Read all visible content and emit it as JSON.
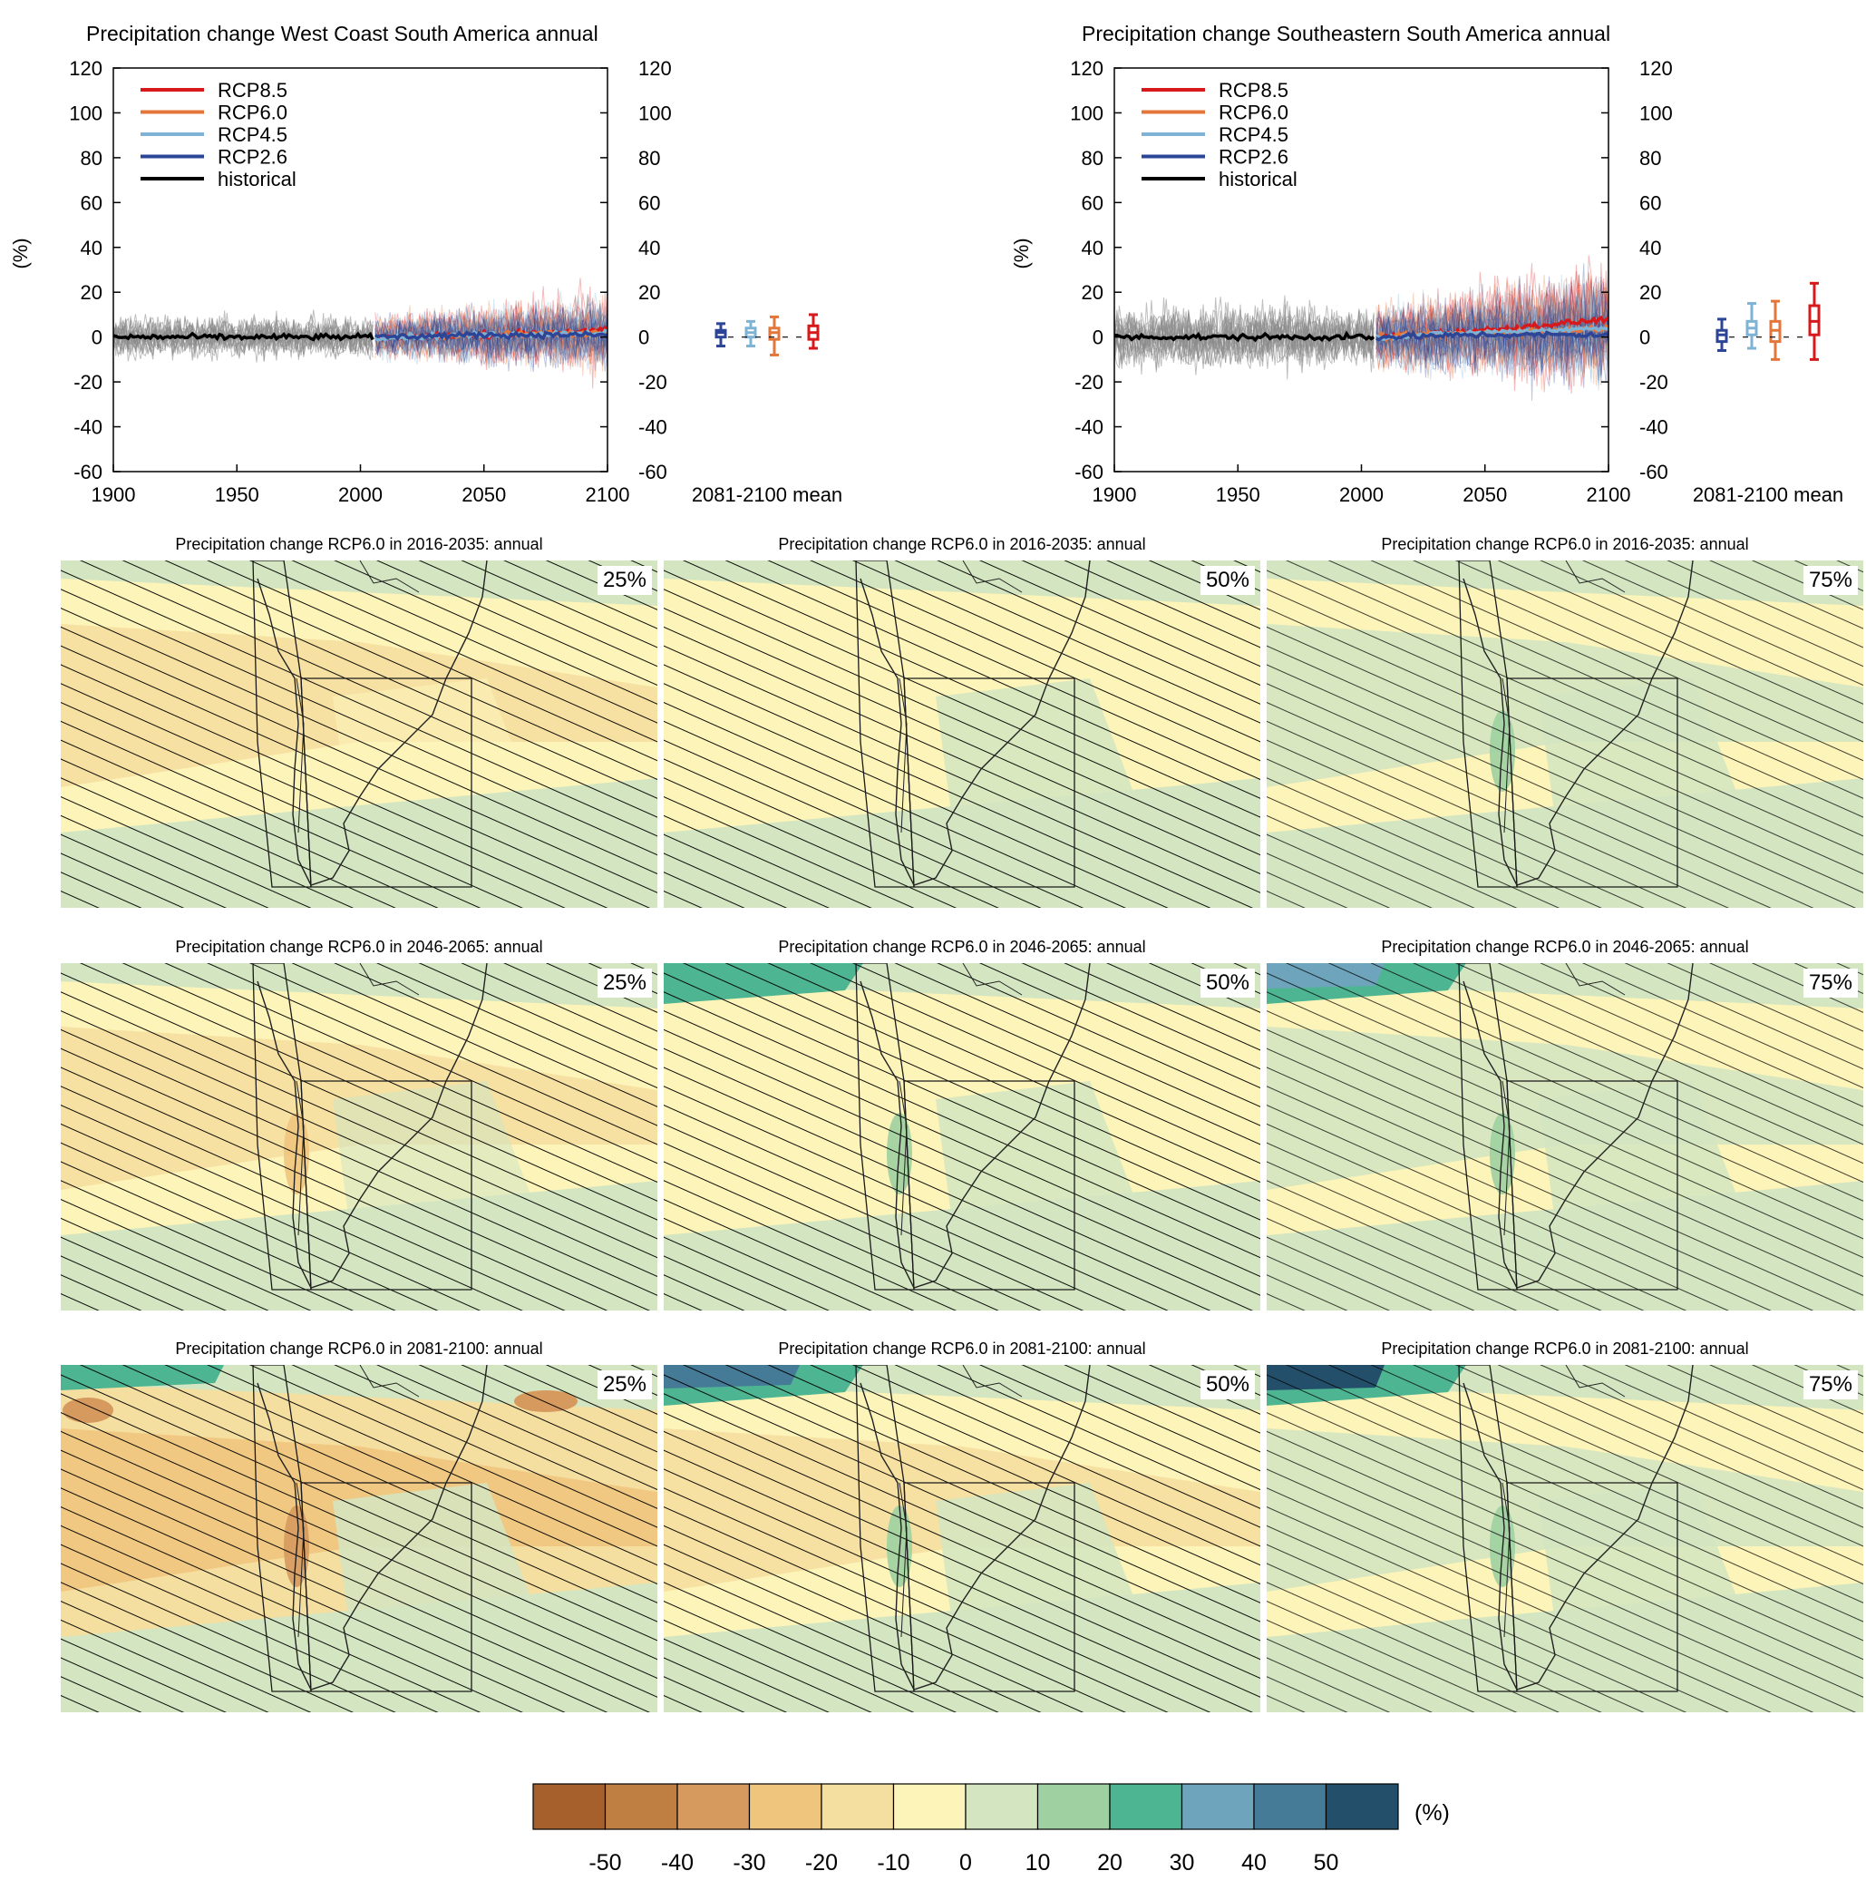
{
  "chart_data": [
    {
      "type": "line",
      "title": "Precipitation change West Coast South America annual",
      "ylabel": "(%)",
      "xlim": [
        1900,
        2100
      ],
      "ylim": [
        -60,
        120
      ],
      "x_ticks": [
        "1900",
        "1950",
        "2000",
        "2050",
        "2100"
      ],
      "y_ticks": [
        "-60",
        "-40",
        "-20",
        "0",
        "20",
        "40",
        "60",
        "80",
        "100",
        "120"
      ],
      "legend": "top-left",
      "series": [
        {
          "name": "RCP8.5",
          "color": "#d7191c",
          "x": [
            2006,
            2050,
            2100
          ],
          "values": [
            0,
            1,
            3
          ]
        },
        {
          "name": "RCP6.0",
          "color": "#e3763a",
          "x": [
            2006,
            2050,
            2100
          ],
          "values": [
            0,
            1,
            2
          ]
        },
        {
          "name": "RCP4.5",
          "color": "#7fb3d5",
          "x": [
            2006,
            2050,
            2100
          ],
          "values": [
            0,
            1,
            2
          ]
        },
        {
          "name": "RCP2.6",
          "color": "#2c4596",
          "x": [
            2006,
            2050,
            2100
          ],
          "values": [
            0,
            1,
            1
          ]
        },
        {
          "name": "historical",
          "color": "#000000",
          "x": [
            1900,
            1950,
            2005
          ],
          "values": [
            0,
            0,
            0
          ]
        }
      ],
      "box_label": "2081-2100 mean",
      "boxes": [
        {
          "name": "RCP2.6",
          "color": "#2c4596",
          "min": -4,
          "q1": 0,
          "median": 2,
          "q3": 3,
          "max": 6
        },
        {
          "name": "RCP4.5",
          "color": "#7fb3d5",
          "min": -4,
          "q1": 0,
          "median": 2,
          "q3": 4,
          "max": 7
        },
        {
          "name": "RCP6.0",
          "color": "#e3763a",
          "min": -8,
          "q1": -1,
          "median": 2,
          "q3": 4,
          "max": 9
        },
        {
          "name": "RCP8.5",
          "color": "#d7191c",
          "min": -5,
          "q1": -1,
          "median": 2,
          "q3": 5,
          "max": 10
        }
      ]
    },
    {
      "type": "line",
      "title": "Precipitation change Southeastern South America annual",
      "ylabel": "(%)",
      "xlim": [
        1900,
        2100
      ],
      "ylim": [
        -60,
        120
      ],
      "x_ticks": [
        "1900",
        "1950",
        "2000",
        "2050",
        "2100"
      ],
      "y_ticks": [
        "-60",
        "-40",
        "-20",
        "0",
        "20",
        "40",
        "60",
        "80",
        "100",
        "120"
      ],
      "legend": "top-left",
      "series": [
        {
          "name": "RCP8.5",
          "color": "#d7191c",
          "x": [
            2006,
            2050,
            2100
          ],
          "values": [
            0,
            3,
            8
          ]
        },
        {
          "name": "RCP6.0",
          "color": "#e3763a",
          "x": [
            2006,
            2050,
            2100
          ],
          "values": [
            0,
            2,
            4
          ]
        },
        {
          "name": "RCP4.5",
          "color": "#7fb3d5",
          "x": [
            2006,
            2050,
            2100
          ],
          "values": [
            0,
            2,
            4
          ]
        },
        {
          "name": "RCP2.6",
          "color": "#2c4596",
          "x": [
            2006,
            2050,
            2100
          ],
          "values": [
            0,
            1,
            1
          ]
        },
        {
          "name": "historical",
          "color": "#000000",
          "x": [
            1900,
            1950,
            2005
          ],
          "values": [
            0,
            0,
            0
          ]
        }
      ],
      "box_label": "2081-2100 mean",
      "boxes": [
        {
          "name": "RCP2.6",
          "color": "#2c4596",
          "min": -6,
          "q1": -2,
          "median": 1,
          "q3": 3,
          "max": 8
        },
        {
          "name": "RCP4.5",
          "color": "#7fb3d5",
          "min": -5,
          "q1": 1,
          "median": 4,
          "q3": 7,
          "max": 15
        },
        {
          "name": "RCP6.0",
          "color": "#e3763a",
          "min": -10,
          "q1": -2,
          "median": 3,
          "q3": 7,
          "max": 16
        },
        {
          "name": "RCP8.5",
          "color": "#d7191c",
          "min": -10,
          "q1": 1,
          "median": 7,
          "q3": 14,
          "max": 24
        }
      ]
    },
    {
      "type": "heatmap",
      "maps": [
        {
          "title": "Precipitation change RCP6.0 in 2016-2035: annual",
          "percentile": "25%"
        },
        {
          "title": "Precipitation change RCP6.0 in 2016-2035: annual",
          "percentile": "50%"
        },
        {
          "title": "Precipitation change RCP6.0 in 2016-2035: annual",
          "percentile": "75%"
        },
        {
          "title": "Precipitation change RCP6.0 in 2046-2065: annual",
          "percentile": "25%"
        },
        {
          "title": "Precipitation change RCP6.0 in 2046-2065: annual",
          "percentile": "50%"
        },
        {
          "title": "Precipitation change RCP6.0 in 2046-2065: annual",
          "percentile": "75%"
        },
        {
          "title": "Precipitation change RCP6.0 in 2081-2100: annual",
          "percentile": "25%"
        },
        {
          "title": "Precipitation change RCP6.0 in 2081-2100: annual",
          "percentile": "50%"
        },
        {
          "title": "Precipitation change RCP6.0 in 2081-2100: annual",
          "percentile": "75%"
        }
      ],
      "colorbar": {
        "unit": "(%)",
        "ticks": [
          "-50",
          "-40",
          "-30",
          "-20",
          "-10",
          "0",
          "10",
          "20",
          "30",
          "40",
          "50"
        ],
        "colors": [
          "#a6602c",
          "#c07f42",
          "#d69a5e",
          "#efc57e",
          "#f5dfa0",
          "#fdf4b9",
          "#d4e5c1",
          "#9fd0a1",
          "#4eb592",
          "#6ea5bd",
          "#467b98",
          "#244f6b"
        ]
      }
    }
  ]
}
